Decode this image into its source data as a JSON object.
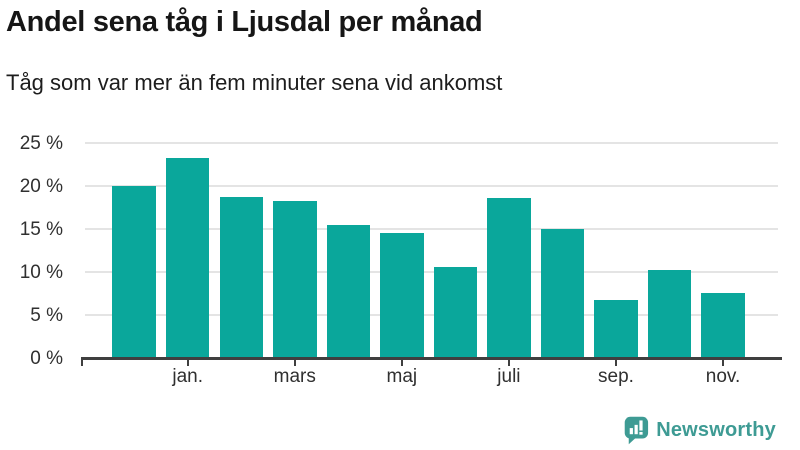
{
  "header": {
    "title": "Andel sena tåg i Ljusdal per månad",
    "subtitle": "Tåg som var mer än fem minuter sena vid ankomst"
  },
  "chart_data": {
    "type": "bar",
    "title": "Andel sena tåg i Ljusdal per månad",
    "subtitle": "Tåg som var mer än fem minuter sena vid ankomst",
    "unit": "%",
    "values": [
      20.0,
      23.2,
      18.7,
      18.2,
      15.5,
      14.5,
      10.6,
      18.6,
      15.0,
      6.8,
      10.2,
      7.6
    ],
    "x_tick_labels": [
      "jan.",
      "mars",
      "maj",
      "juli",
      "sep.",
      "nov."
    ],
    "x_tick_bar_indexes": [
      1,
      3,
      5,
      7,
      9,
      11
    ],
    "y_tick_values": [
      0,
      5,
      10,
      15,
      20,
      25
    ],
    "y_tick_labels": [
      "0 %",
      "5 %",
      "10 %",
      "15 %",
      "20 %",
      "25 %"
    ],
    "ylim": [
      0,
      25
    ],
    "grid": "horizontal-only",
    "legend": "none",
    "bar_color": "#0aa79b",
    "grid_color": "#e4e4e4",
    "axis_color": "#3f3f3f"
  },
  "footer": {
    "brand": "Newsworthy",
    "brand_color": "#3e9b94",
    "logo_icon": "newsworthy-speech-bubble-chart-icon"
  }
}
